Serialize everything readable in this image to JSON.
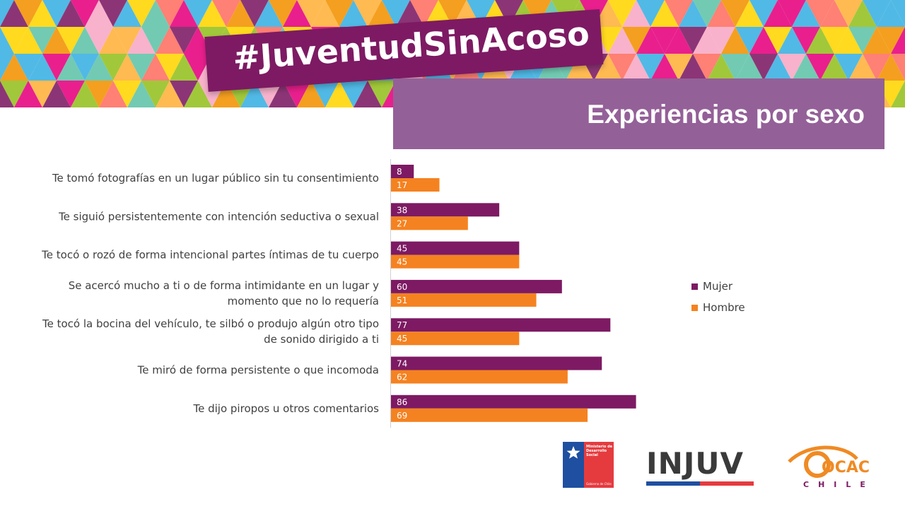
{
  "header": {
    "hashtag": "#JuventudSinAcoso",
    "subtitle": "Experiencias por sexo"
  },
  "colors": {
    "mujer": "#7d1a63",
    "hombre": "#f58220",
    "banner": "#7d1a63",
    "subtitle_box": "#946098",
    "mosaic": [
      "#e6007e",
      "#f39200",
      "#ffd500",
      "#95c11f",
      "#3ab0e2",
      "#7d1a63",
      "#ff6f61",
      "#5fc3a8",
      "#f7a8c4",
      "#ffb13b"
    ]
  },
  "chart_data": {
    "type": "bar",
    "orientation": "horizontal",
    "categories": [
      "Te tomó fotografías en un lugar público sin tu consentimiento",
      "Te siguió persistentemente con intención seductiva o sexual",
      "Te tocó o rozó de forma intencional partes íntimas de tu cuerpo",
      "Se acercó mucho a ti o de forma intimidante en un lugar y momento que no lo requería",
      "Te tocó la bocina del vehículo, te silbó o produjo algún otro tipo de sonido dirigido a ti",
      "Te miró de forma persistente o que incomoda",
      "Te dijo piropos u otros comentarios"
    ],
    "category_lines": [
      [
        "Te tomó fotografías en un lugar público sin tu consentimiento"
      ],
      [
        "Te siguió persistentemente con intención seductiva o sexual"
      ],
      [
        "Te tocó o rozó de forma intencional partes íntimas de tu cuerpo"
      ],
      [
        "Se acercó mucho a ti o de forma intimidante en un lugar y",
        "momento que no lo requería"
      ],
      [
        "Te tocó la bocina del vehículo, te silbó o produjo algún otro tipo",
        "de sonido dirigido a ti"
      ],
      [
        "Te miró de forma persistente o que incomoda"
      ],
      [
        "Te dijo piropos u otros comentarios"
      ]
    ],
    "series": [
      {
        "name": "Mujer",
        "color": "#7d1a63",
        "values": [
          8,
          38,
          45,
          60,
          77,
          74,
          86
        ]
      },
      {
        "name": "Hombre",
        "color": "#f58220",
        "values": [
          17,
          27,
          45,
          51,
          45,
          62,
          69
        ]
      }
    ],
    "xlim": [
      0,
      100
    ],
    "grid": false,
    "legend": "right"
  },
  "logos": {
    "gob_text": [
      "Ministerio de",
      "Desarrollo",
      "Social"
    ],
    "gob_foot": "Gobierno de Chile",
    "injuv": "INJUV",
    "ocac": "OCAC",
    "ocac_sub": "CHILE"
  }
}
